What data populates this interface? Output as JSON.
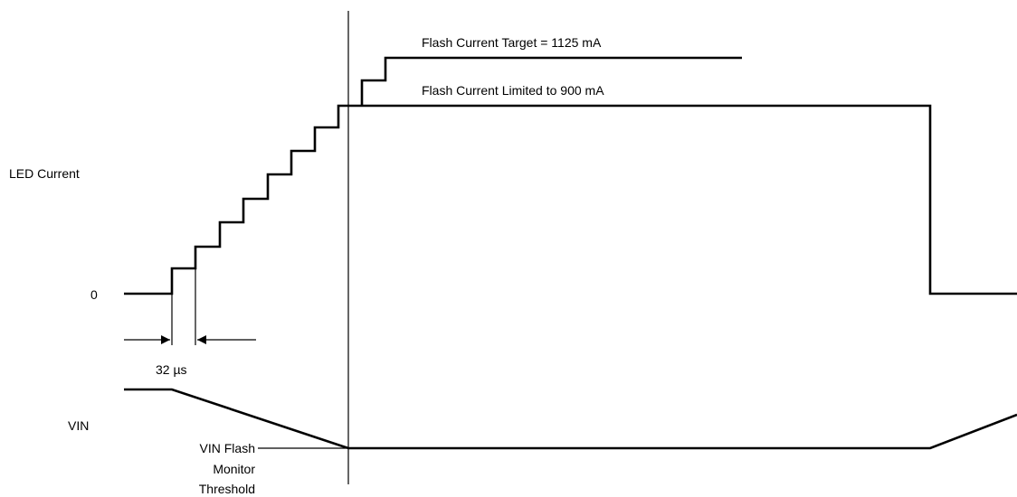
{
  "labels": {
    "led_current": "LED Current",
    "zero": "0",
    "vin": "VIN",
    "flash_target": "Flash Current Target = 1125 mA",
    "flash_limited": "Flash Current Limited to 900 mA",
    "step_time": "32 µs",
    "threshold_line1": "VIN Flash",
    "threshold_line2": "Monitor",
    "threshold_line3": "Threshold"
  },
  "colors": {
    "stroke": "#000000",
    "background": "#ffffff"
  }
}
